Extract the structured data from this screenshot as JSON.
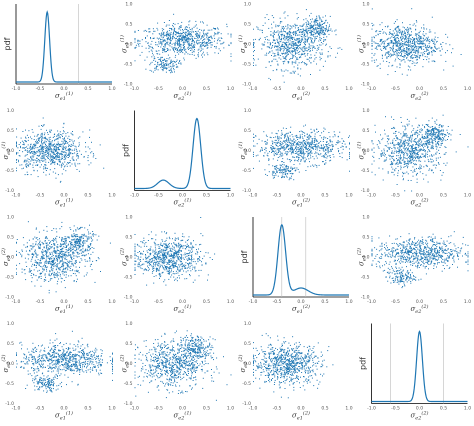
{
  "chart_data": {
    "type": "scatter",
    "layout": "4x4 pair-plot matrix; diagonal panels are 1-D density curves, off-diagonal panels are 2-D scatter samples",
    "colors": {
      "points": "#1f77b4",
      "curve": "#1f77b4",
      "axis": "#000000",
      "marker_line": "#bbbbbb"
    },
    "pdf_label": "pdf",
    "variables": [
      "σ_{e_1}^{(1)}",
      "σ_{e_2}^{(1)}",
      "σ_{e_1}^{(2)}",
      "σ_{e_2}^{(2)}"
    ],
    "ticks": {
      "pdf_col0": [
        "-1.0",
        "-0.5",
        "0.0",
        "0.5",
        "1.0"
      ],
      "pdf_col1": [
        "-1.0",
        "-0.5",
        "0.0",
        "0.5",
        "1.0"
      ],
      "pdf_col2": [
        "-1.0",
        "-0.5",
        "0.0",
        "0.5",
        "1.0"
      ],
      "pdf_col3": [
        "-1.0",
        "-0.5",
        "0.0",
        "0.5",
        "1.0"
      ],
      "scatter_y": [
        "1.0",
        "0.5",
        "0.0",
        "-0.5",
        "-1.0"
      ],
      "scatter_x": [
        "-1.0",
        "-0.5",
        "0.0",
        "0.5",
        "1.0"
      ]
    },
    "xlim": [
      -1,
      1
    ],
    "ylim": [
      -1,
      1
    ],
    "diagonal": [
      {
        "peak_x": -0.35,
        "width": 0.05,
        "secondary": [],
        "markers": [
          0.3
        ]
      },
      {
        "peak_x": 0.3,
        "width": 0.08,
        "secondary": [
          {
            "x": -0.4,
            "w": 0.12,
            "h": 0.12
          }
        ],
        "markers": []
      },
      {
        "peak_x": -0.4,
        "width": 0.08,
        "secondary": [
          {
            "x": 0.0,
            "w": 0.15,
            "h": 0.1
          }
        ],
        "markers": [
          -0.4,
          0.1
        ]
      },
      {
        "peak_x": 0.0,
        "width": 0.06,
        "secondary": [],
        "markers": [
          -0.6,
          0.5
        ]
      }
    ],
    "scatter_clusters": [
      [
        {
          "cx": -0.1,
          "cy": 0.3,
          "sx": 0.3,
          "sy": 0.35,
          "n": 600
        },
        {
          "cx": -0.4,
          "cy": -0.4,
          "sx": 0.15,
          "sy": 0.15,
          "n": 150
        },
        {
          "cx": 0.4,
          "cy": -0.5,
          "sx": 0.15,
          "sy": 0.12,
          "n": 100
        }
      ],
      [
        {
          "cx": 0.0,
          "cy": 0.1,
          "sx": 0.45,
          "sy": 0.2,
          "n": 700
        },
        {
          "cx": -0.4,
          "cy": -0.5,
          "sx": 0.15,
          "sy": 0.1,
          "n": 120
        }
      ],
      [
        {
          "cx": -0.2,
          "cy": 0.0,
          "sx": 0.35,
          "sy": 0.3,
          "n": 700
        },
        {
          "cx": 0.3,
          "cy": 0.4,
          "sx": 0.15,
          "sy": 0.15,
          "n": 200
        }
      ],
      [
        {
          "cx": -0.3,
          "cy": 0.0,
          "sx": 0.35,
          "sy": 0.25,
          "n": 750
        }
      ]
    ]
  }
}
